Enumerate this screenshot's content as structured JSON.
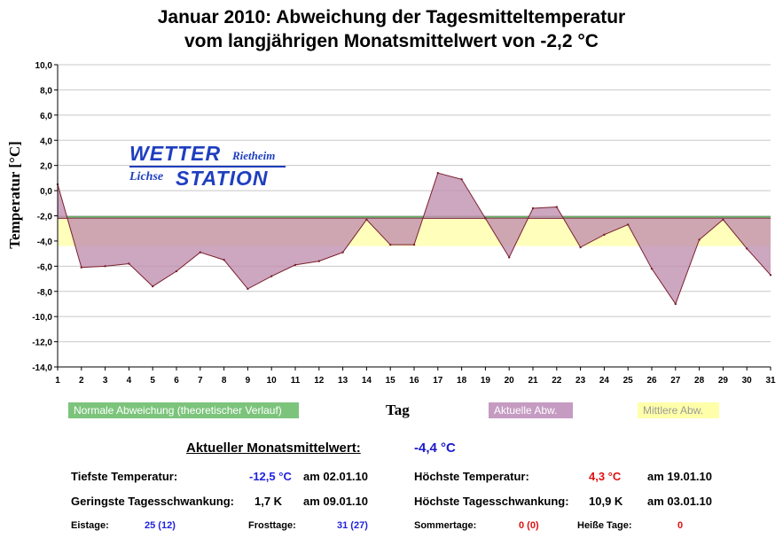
{
  "header": {
    "title_line1": "Januar 2010: Abweichung der Tagesmitteltemperatur",
    "title_line2": "vom langjährigen Monatsmittelwert von -2,2 °C"
  },
  "logo": {
    "wetter": "WETTER",
    "station": "STATION",
    "rietheim": "Rietheim",
    "lichse": "Lichse"
  },
  "chart_data": {
    "type": "area",
    "title": "Januar 2010: Abweichung der Tagesmitteltemperatur vom langjährigen Monatsmittelwert von -2,2 °C",
    "xlabel": "Tag",
    "ylabel": "Temperatur [°C]",
    "reference_value": -2.2,
    "mean_value": -4.4,
    "xlim": [
      1,
      31
    ],
    "ylim": [
      -14,
      10
    ],
    "y_ticks": [
      "10,0",
      "8,0",
      "6,0",
      "4,0",
      "2,0",
      "0,0",
      "-2,0",
      "-4,0",
      "-6,0",
      "-8,0",
      "-10,0",
      "-12,0",
      "-14,0"
    ],
    "y_tick_values": [
      10,
      8,
      6,
      4,
      2,
      0,
      -2,
      -4,
      -6,
      -8,
      -10,
      -12,
      -14
    ],
    "x_ticks": [
      "1",
      "2",
      "3",
      "4",
      "5",
      "6",
      "7",
      "8",
      "9",
      "10",
      "11",
      "12",
      "13",
      "14",
      "15",
      "16",
      "17",
      "18",
      "19",
      "20",
      "21",
      "22",
      "23",
      "24",
      "25",
      "26",
      "27",
      "28",
      "29",
      "30",
      "31"
    ],
    "series": [
      {
        "name": "Aktuelle Abw.",
        "x": [
          1,
          2,
          3,
          4,
          5,
          6,
          7,
          8,
          9,
          10,
          11,
          12,
          13,
          14,
          15,
          16,
          17,
          18,
          19,
          20,
          21,
          22,
          23,
          24,
          25,
          26,
          27,
          28,
          29,
          30,
          31
        ],
        "values": [
          0.5,
          -6.1,
          -6.0,
          -5.8,
          -7.6,
          -6.4,
          -4.9,
          -5.5,
          -7.8,
          -6.8,
          -5.9,
          -5.6,
          -4.9,
          -2.3,
          -4.3,
          -4.3,
          1.4,
          0.9,
          -2.2,
          -5.3,
          -1.4,
          -1.3,
          -4.5,
          -3.5,
          -2.7,
          -6.2,
          -9.0,
          -3.9,
          -2.3,
          -4.6,
          -6.7
        ]
      }
    ],
    "legend": [
      {
        "label": "Normale Abweichung (theoretischer Verlauf)",
        "color": "#7cc47c"
      },
      {
        "label": "Aktuelle Abw.",
        "color": "#c59bc2"
      },
      {
        "label": "Mittlere Abw.",
        "color": "#ffffaa"
      }
    ],
    "colors": {
      "area": "#c090b0",
      "outline": "#7a1f2c",
      "normal_line": "#4fa04f",
      "mean_band": "#ffffbb",
      "grid": "#c8c8c8"
    }
  },
  "stats": {
    "monthly_mean_label": "Aktueller Monatsmittelwert:",
    "monthly_mean_value": "-4,4 °C",
    "min_temp_label": "Tiefste Temperatur:",
    "min_temp_value": "-12,5 °C",
    "min_temp_date": "am 02.01.10",
    "max_temp_label": "Höchste Temperatur:",
    "max_temp_value": "4,3 °C",
    "max_temp_date": "am 19.01.10",
    "min_range_label": "Geringste Tagesschwankung:",
    "min_range_value": "1,7 K",
    "min_range_date": "am 09.01.10",
    "max_range_label": "Höchste Tagesschwankung:",
    "max_range_value": "10,9 K",
    "max_range_date": "am 03.01.10",
    "ice_days_label": "Eistage:",
    "ice_days_value": "25 (12)",
    "frost_days_label": "Frosttage:",
    "frost_days_value": "31 (27)",
    "summer_days_label": "Sommertage:",
    "summer_days_value": "0 (0)",
    "hot_days_label": "Heiße Tage:",
    "hot_days_value": "0"
  }
}
